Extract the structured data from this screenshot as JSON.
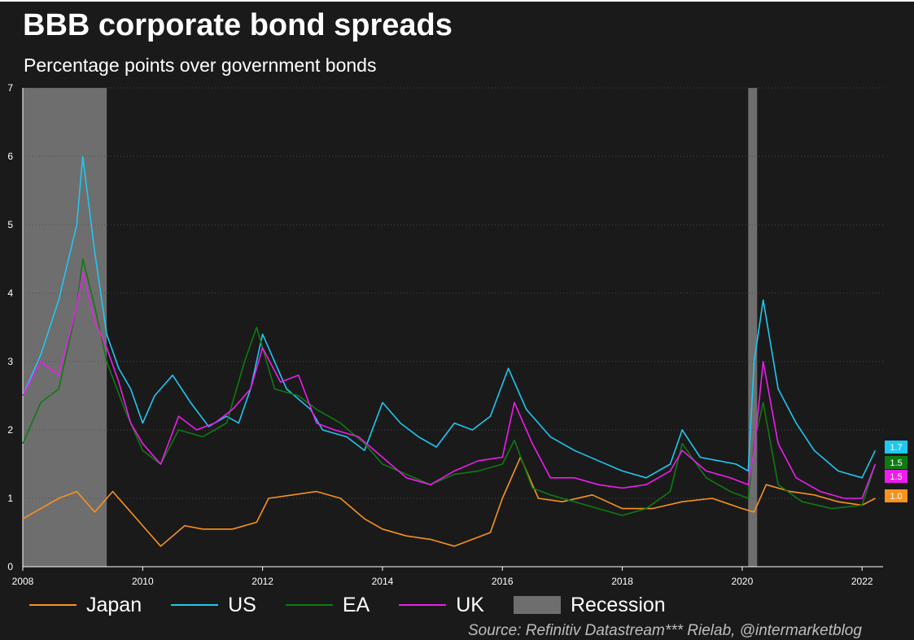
{
  "title": "BBB corporate bond spreads",
  "subtitle": "Percentage points over government bonds",
  "source": "Source: Refinitiv Datastream*** Rielab, @intermarketblog",
  "colors": {
    "background": "#1a1a1a",
    "Japan": "#f7931e",
    "US": "#1ec8f0",
    "EA": "#0f7a12",
    "UK": "#ee1cee",
    "Recession": "#6e6e6e"
  },
  "legend": [
    {
      "label": "Japan",
      "type": "line",
      "color": "#f7931e"
    },
    {
      "label": "US",
      "type": "line",
      "color": "#1ec8f0"
    },
    {
      "label": "EA",
      "type": "line",
      "color": "#0f7a12"
    },
    {
      "label": "UK",
      "type": "line",
      "color": "#ee1cee"
    },
    {
      "label": "Recession",
      "type": "box",
      "color": "#6e6e6e"
    }
  ],
  "chart_data": {
    "type": "line",
    "title": "BBB corporate bond spreads",
    "subtitle": "Percentage points over government bonds",
    "ylim": [
      0,
      7
    ],
    "xlim": [
      2008.0,
      2022.35
    ],
    "yticks": [
      "0",
      "1",
      "2",
      "3",
      "4",
      "5",
      "6",
      "7"
    ],
    "xticks": [
      "2008",
      "2010",
      "2012",
      "2014",
      "2016",
      "2018",
      "2020",
      "2022"
    ],
    "grid": "horizontal dotted",
    "legend_position": "bottom",
    "recessions": [
      [
        2008.0,
        2009.4
      ],
      [
        2020.1,
        2020.25
      ]
    ],
    "end_labels": [
      {
        "series": "US",
        "text": "1.7",
        "color": "#1ec8f0"
      },
      {
        "series": "EA",
        "text": "1.5",
        "color": "#0f7a12"
      },
      {
        "series": "UK",
        "text": "1.5",
        "color": "#ee1cee"
      },
      {
        "series": "Japan",
        "text": "1.0",
        "color": "#f7931e"
      }
    ],
    "series": [
      {
        "name": "Japan",
        "color": "#f7931e",
        "x": [
          2008.0,
          2008.3,
          2008.6,
          2008.9,
          2009.2,
          2009.5,
          2009.8,
          2010.0,
          2010.3,
          2010.7,
          2011.0,
          2011.5,
          2011.9,
          2012.1,
          2012.5,
          2012.9,
          2013.3,
          2013.7,
          2014.0,
          2014.4,
          2014.8,
          2015.2,
          2015.5,
          2015.8,
          2016.0,
          2016.3,
          2016.6,
          2017.0,
          2017.5,
          2018.0,
          2018.5,
          2019.0,
          2019.5,
          2020.0,
          2020.2,
          2020.4,
          2020.8,
          2021.2,
          2021.6,
          2022.0,
          2022.22
        ],
        "y": [
          0.7,
          0.85,
          1.0,
          1.1,
          0.8,
          1.1,
          0.8,
          0.6,
          0.3,
          0.6,
          0.55,
          0.55,
          0.65,
          1.0,
          1.05,
          1.1,
          1.0,
          0.7,
          0.55,
          0.45,
          0.4,
          0.3,
          0.4,
          0.5,
          1.0,
          1.6,
          1.0,
          0.95,
          1.05,
          0.85,
          0.85,
          0.95,
          1.0,
          0.85,
          0.8,
          1.2,
          1.1,
          1.05,
          0.95,
          0.9,
          1.0
        ]
      },
      {
        "name": "US",
        "color": "#1ec8f0",
        "x": [
          2008.0,
          2008.3,
          2008.6,
          2008.9,
          2009.0,
          2009.2,
          2009.4,
          2009.6,
          2009.8,
          2010.0,
          2010.2,
          2010.5,
          2010.8,
          2011.1,
          2011.4,
          2011.6,
          2011.8,
          2012.0,
          2012.4,
          2012.8,
          2013.0,
          2013.4,
          2013.7,
          2014.0,
          2014.3,
          2014.6,
          2014.9,
          2015.2,
          2015.5,
          2015.8,
          2016.1,
          2016.4,
          2016.8,
          2017.2,
          2017.6,
          2018.0,
          2018.4,
          2018.8,
          2019.0,
          2019.3,
          2019.6,
          2019.9,
          2020.1,
          2020.2,
          2020.35,
          2020.6,
          2020.9,
          2021.2,
          2021.6,
          2022.0,
          2022.22
        ],
        "y": [
          2.5,
          3.1,
          3.9,
          5.0,
          6.0,
          4.6,
          3.4,
          2.9,
          2.6,
          2.1,
          2.5,
          2.8,
          2.4,
          2.05,
          2.2,
          2.1,
          2.6,
          3.4,
          2.6,
          2.3,
          2.0,
          1.9,
          1.7,
          2.4,
          2.1,
          1.9,
          1.75,
          2.1,
          2.0,
          2.2,
          2.9,
          2.3,
          1.9,
          1.7,
          1.55,
          1.4,
          1.3,
          1.5,
          2.0,
          1.6,
          1.55,
          1.5,
          1.4,
          3.0,
          3.9,
          2.6,
          2.1,
          1.7,
          1.4,
          1.3,
          1.7
        ]
      },
      {
        "name": "EA",
        "color": "#0f7a12",
        "x": [
          2008.0,
          2008.3,
          2008.6,
          2008.9,
          2009.0,
          2009.2,
          2009.4,
          2009.7,
          2010.0,
          2010.3,
          2010.6,
          2011.0,
          2011.4,
          2011.7,
          2011.9,
          2012.2,
          2012.6,
          2012.9,
          2013.3,
          2013.7,
          2014.0,
          2014.4,
          2014.8,
          2015.2,
          2015.6,
          2016.0,
          2016.2,
          2016.5,
          2016.8,
          2017.2,
          2017.6,
          2018.0,
          2018.4,
          2018.8,
          2019.0,
          2019.4,
          2019.8,
          2020.1,
          2020.2,
          2020.35,
          2020.6,
          2021.0,
          2021.5,
          2022.0,
          2022.22
        ],
        "y": [
          1.8,
          2.4,
          2.6,
          3.8,
          4.5,
          3.8,
          3.0,
          2.3,
          1.7,
          1.5,
          2.0,
          1.9,
          2.1,
          3.0,
          3.5,
          2.6,
          2.5,
          2.3,
          2.1,
          1.8,
          1.5,
          1.35,
          1.2,
          1.35,
          1.4,
          1.5,
          1.85,
          1.15,
          1.05,
          0.95,
          0.85,
          0.75,
          0.85,
          1.1,
          1.8,
          1.3,
          1.1,
          1.0,
          1.8,
          2.4,
          1.2,
          0.95,
          0.85,
          0.9,
          1.5
        ]
      },
      {
        "name": "UK",
        "color": "#ee1cee",
        "x": [
          2008.0,
          2008.3,
          2008.6,
          2008.9,
          2009.0,
          2009.2,
          2009.4,
          2009.6,
          2009.8,
          2010.0,
          2010.3,
          2010.6,
          2010.9,
          2011.2,
          2011.5,
          2011.8,
          2012.0,
          2012.3,
          2012.6,
          2012.9,
          2013.2,
          2013.6,
          2014.0,
          2014.4,
          2014.8,
          2015.2,
          2015.6,
          2016.0,
          2016.2,
          2016.5,
          2016.8,
          2017.2,
          2017.6,
          2018.0,
          2018.4,
          2018.8,
          2019.0,
          2019.4,
          2019.8,
          2020.1,
          2020.2,
          2020.35,
          2020.6,
          2020.9,
          2021.3,
          2021.7,
          2022.0,
          2022.22
        ],
        "y": [
          2.5,
          3.0,
          2.8,
          3.8,
          4.3,
          3.6,
          3.2,
          2.7,
          2.1,
          1.8,
          1.5,
          2.2,
          2.0,
          2.1,
          2.3,
          2.6,
          3.2,
          2.7,
          2.8,
          2.1,
          2.0,
          1.9,
          1.6,
          1.3,
          1.2,
          1.4,
          1.55,
          1.6,
          2.4,
          1.8,
          1.3,
          1.3,
          1.2,
          1.15,
          1.2,
          1.4,
          1.7,
          1.4,
          1.3,
          1.2,
          1.7,
          3.0,
          1.8,
          1.3,
          1.1,
          1.0,
          1.0,
          1.5
        ]
      }
    ]
  }
}
